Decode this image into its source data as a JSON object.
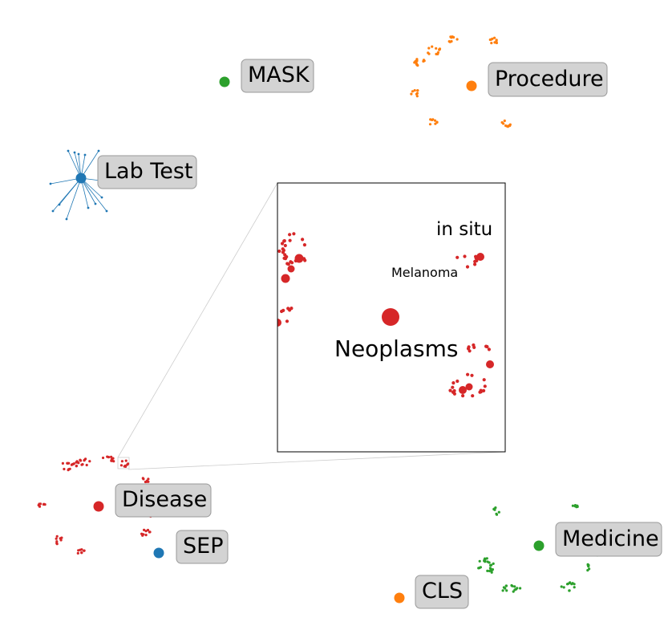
{
  "colors": {
    "red": "#d62728",
    "orange": "#ff7f0e",
    "green": "#2ca02c",
    "blue": "#1f77b4",
    "label_box": "#d3d3d3"
  },
  "categories": [
    {
      "key": "mask",
      "label": "MASK",
      "color": "#2ca02c"
    },
    {
      "key": "procedure",
      "label": "Procedure",
      "color": "#ff7f0e"
    },
    {
      "key": "lab_test",
      "label": "Lab Test",
      "color": "#1f77b4"
    },
    {
      "key": "disease",
      "label": "Disease",
      "color": "#d62728"
    },
    {
      "key": "sep",
      "label": "SEP",
      "color": "#1f77b4"
    },
    {
      "key": "medicine",
      "label": "Medicine",
      "color": "#2ca02c"
    },
    {
      "key": "cls",
      "label": "CLS",
      "color": "#ff7f0e"
    }
  ],
  "inset": {
    "labels": {
      "in_situ": "in situ",
      "melanoma": "Melanoma",
      "neoplasms": "Neoplasms"
    }
  }
}
